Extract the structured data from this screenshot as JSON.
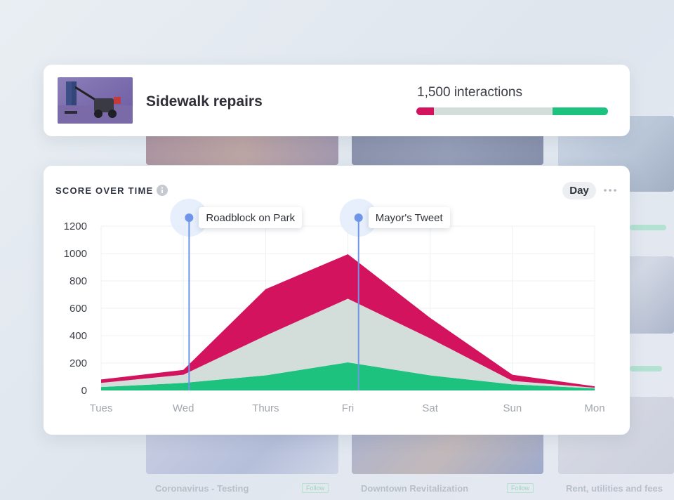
{
  "topic": {
    "title": "Sidewalk repairs",
    "interactions_label": "1,500 interactions",
    "interaction_breakdown": [
      {
        "share": 0.09,
        "color": "#d3135e"
      },
      {
        "share": 0.62,
        "color": "#d3ddd9"
      },
      {
        "share": 0.29,
        "color": "#1ec27f"
      }
    ]
  },
  "chart_header": {
    "title": "SCORE OVER TIME",
    "period": "Day"
  },
  "background_cards": [
    {
      "title": "Coronavirus - Testing",
      "follow": "Follow"
    },
    {
      "title": "Downtown Revitalization",
      "follow": "Follow"
    },
    {
      "title": "Rent, utilities and fees"
    }
  ],
  "chart_data": {
    "type": "area",
    "stacked": true,
    "categories": [
      "Tues",
      "Wed",
      "Thurs",
      "Fri",
      "Sat",
      "Sun",
      "Mon"
    ],
    "ylim": [
      0,
      1200
    ],
    "yticks": [
      0,
      200,
      400,
      600,
      800,
      1000,
      1200
    ],
    "grid": true,
    "series": [
      {
        "color": "#1ec27f",
        "values": [
          25,
          55,
          110,
          205,
          110,
          45,
          15
        ]
      },
      {
        "color": "#d3ddd9",
        "values": [
          30,
          60,
          290,
          465,
          270,
          25,
          5
        ]
      },
      {
        "color": "#d3135e",
        "values": [
          25,
          35,
          340,
          325,
          150,
          45,
          10
        ]
      }
    ],
    "annotations": [
      {
        "label": "Roadblock on Park",
        "x": 1.07,
        "color": "#6e95e8"
      },
      {
        "label": "Mayor's Tweet",
        "x": 3.13,
        "color": "#6e95e8"
      }
    ]
  }
}
